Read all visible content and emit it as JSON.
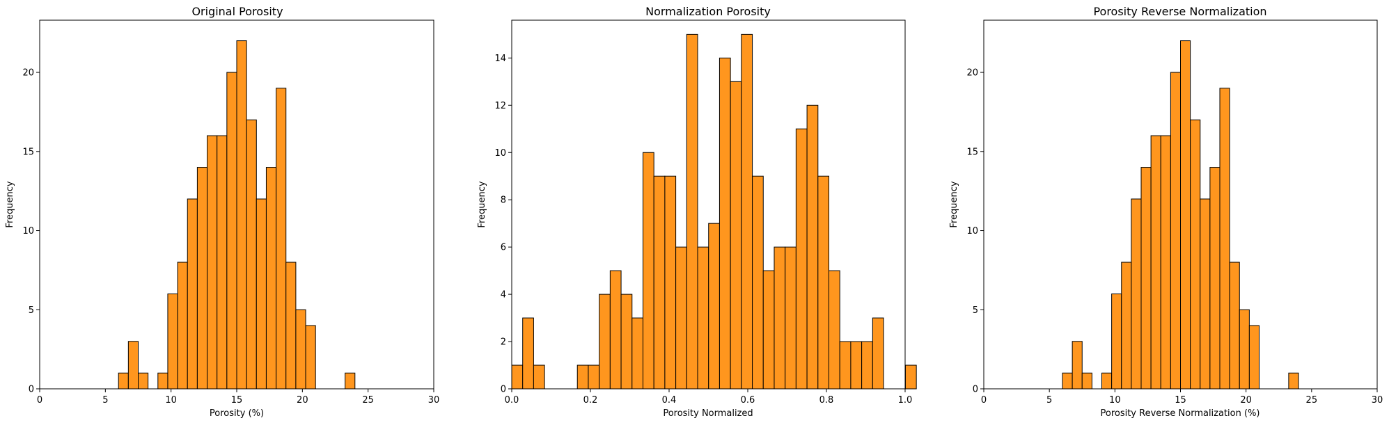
{
  "chart_data": [
    {
      "type": "bar",
      "title": "Original Porosity",
      "xlabel": "Porosity (%)",
      "ylabel": "Frequency",
      "xlim": [
        0,
        30
      ],
      "ylim": [
        0,
        23.3
      ],
      "xticks": [
        "0",
        "5",
        "10",
        "15",
        "20",
        "25",
        "30"
      ],
      "xtick_values": [
        0,
        5,
        10,
        15,
        20,
        25,
        30
      ],
      "yticks": [
        "0",
        "5",
        "10",
        "15",
        "20"
      ],
      "ytick_values": [
        0,
        5,
        10,
        15,
        20
      ],
      "bin_start": 6.0,
      "bin_width": 0.75,
      "values": [
        1,
        3,
        1,
        0,
        1,
        6,
        8,
        12,
        14,
        16,
        16,
        20,
        22,
        17,
        12,
        14,
        19,
        8,
        5,
        4,
        0,
        0,
        0,
        1
      ],
      "bar_color": "#FF961E",
      "edge_color": "#000000",
      "grid": false
    },
    {
      "type": "bar",
      "title": "Normalization Porosity",
      "xlabel": "Porosity Normalized",
      "ylabel": "Frequency",
      "xlim": [
        0,
        1
      ],
      "ylim": [
        0,
        15.6
      ],
      "xticks": [
        "0.0",
        "0.2",
        "0.4",
        "0.6",
        "0.8",
        "1.0"
      ],
      "xtick_values": [
        0,
        0.2,
        0.4,
        0.6,
        0.8,
        1.0
      ],
      "yticks": [
        "0",
        "2",
        "4",
        "6",
        "8",
        "10",
        "12",
        "14"
      ],
      "ytick_values": [
        0,
        2,
        4,
        6,
        8,
        10,
        12,
        14
      ],
      "bin_start": 0.0,
      "bin_width": 0.0278,
      "values": [
        1,
        3,
        1,
        0,
        0,
        0,
        1,
        1,
        4,
        5,
        4,
        3,
        10,
        9,
        9,
        6,
        15,
        6,
        7,
        14,
        13,
        15,
        9,
        5,
        6,
        6,
        11,
        12,
        9,
        5,
        2,
        2,
        2,
        3,
        0,
        0,
        1
      ],
      "bar_color": "#FF961E",
      "edge_color": "#000000",
      "grid": false
    },
    {
      "type": "bar",
      "title": "Porosity Reverse Normalization",
      "xlabel": "Porosity Reverse Normalization (%)",
      "ylabel": "Frequency",
      "xlim": [
        0,
        30
      ],
      "ylim": [
        0,
        23.3
      ],
      "xticks": [
        "0",
        "5",
        "10",
        "15",
        "20",
        "25",
        "30"
      ],
      "xtick_values": [
        0,
        5,
        10,
        15,
        20,
        25,
        30
      ],
      "yticks": [
        "0",
        "5",
        "10",
        "15",
        "20"
      ],
      "ytick_values": [
        0,
        5,
        10,
        15,
        20
      ],
      "bin_start": 6.0,
      "bin_width": 0.75,
      "values": [
        1,
        3,
        1,
        0,
        1,
        6,
        8,
        12,
        14,
        16,
        16,
        20,
        22,
        17,
        12,
        14,
        19,
        8,
        5,
        4,
        0,
        0,
        0,
        1
      ],
      "bar_color": "#FF961E",
      "edge_color": "#000000",
      "grid": false
    }
  ]
}
